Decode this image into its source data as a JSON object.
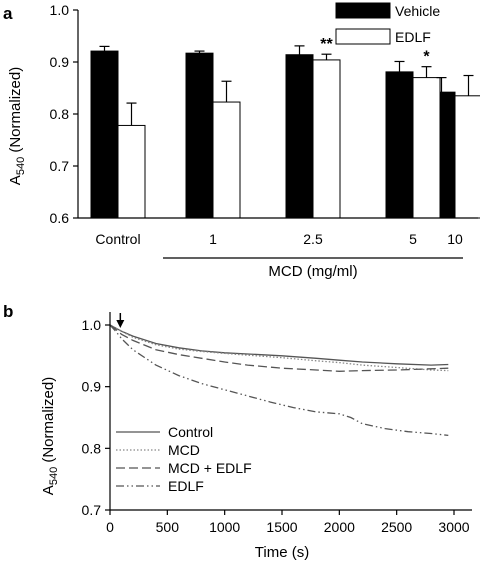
{
  "chart_data": [
    {
      "type": "bar",
      "panel_label": "a",
      "ylabel_main": "A",
      "ylabel_sub": "540",
      "ylabel_tail": " (Normalized)",
      "ylim": [
        0.6,
        1.0
      ],
      "yticks": [
        "0.6",
        "0.7",
        "0.8",
        "0.9",
        "1.0"
      ],
      "categories": [
        "Control",
        "1",
        "2.5",
        "5",
        "10"
      ],
      "group_label": "MCD (mg/ml)",
      "legend": {
        "placement": "top-right"
      },
      "series": [
        {
          "name": "Vehicle",
          "color": "#000000",
          "values": [
            0.921,
            0.917,
            0.914,
            0.881,
            0.842
          ],
          "errors": [
            0.009,
            0.004,
            0.017,
            0.02,
            0.028
          ]
        },
        {
          "name": "EDLF",
          "color": "#ffffff",
          "values": [
            0.778,
            0.823,
            0.904,
            0.87,
            0.835
          ],
          "errors": [
            0.043,
            0.04,
            0.011,
            0.021,
            0.039
          ]
        }
      ],
      "annotations": [
        {
          "category_index": 2,
          "series_index": 1,
          "text": "**"
        },
        {
          "category_index": 3,
          "series_index": 1,
          "text": "*"
        }
      ]
    },
    {
      "type": "line",
      "panel_label": "b",
      "xlabel": "Time (s)",
      "ylabel_main": "A",
      "ylabel_sub": "540",
      "ylabel_tail": " (Normalized)",
      "xlim": [
        0,
        3000
      ],
      "ylim": [
        0.7,
        1.0
      ],
      "xticks": [
        "0",
        "500",
        "1000",
        "1500",
        "2000",
        "2500",
        "3000"
      ],
      "yticks": [
        "0.7",
        "0.8",
        "0.9",
        "1.0"
      ],
      "arrow_at": 90,
      "legend": {
        "placement": "bottom-left"
      },
      "series": [
        {
          "name": "Control",
          "dash": "none",
          "color": "#555555",
          "x": [
            0,
            50,
            100,
            200,
            400,
            600,
            800,
            1000,
            1200,
            1500,
            1800,
            2000,
            2200,
            2500,
            2800,
            2950
          ],
          "y": [
            1.0,
            0.995,
            0.99,
            0.982,
            0.97,
            0.963,
            0.958,
            0.955,
            0.953,
            0.95,
            0.946,
            0.943,
            0.94,
            0.937,
            0.935,
            0.936
          ]
        },
        {
          "name": "MCD",
          "dash": "1.5,2",
          "color": "#888888",
          "x": [
            0,
            50,
            100,
            200,
            400,
            600,
            800,
            1000,
            1200,
            1500,
            1800,
            2000,
            2200,
            2500,
            2800,
            2950
          ],
          "y": [
            1.0,
            0.995,
            0.99,
            0.98,
            0.968,
            0.961,
            0.957,
            0.954,
            0.951,
            0.947,
            0.942,
            0.939,
            0.935,
            0.931,
            0.927,
            0.926
          ]
        },
        {
          "name": "MCD + EDLF",
          "dash": "9,4",
          "color": "#555555",
          "x": [
            0,
            50,
            100,
            200,
            400,
            600,
            800,
            1000,
            1200,
            1500,
            1800,
            2000,
            2200,
            2500,
            2800,
            2950
          ],
          "y": [
            1.0,
            0.993,
            0.985,
            0.975,
            0.96,
            0.952,
            0.946,
            0.94,
            0.935,
            0.93,
            0.927,
            0.925,
            0.926,
            0.927,
            0.929,
            0.93
          ]
        },
        {
          "name": "EDLF",
          "dash": "8,3,1.5,3,1.5,3",
          "color": "#555555",
          "x": [
            0,
            50,
            100,
            200,
            400,
            600,
            800,
            1000,
            1200,
            1400,
            1600,
            1800,
            2000,
            2100,
            2200,
            2400,
            2600,
            2800,
            2950
          ],
          "y": [
            1.0,
            0.99,
            0.978,
            0.96,
            0.935,
            0.918,
            0.905,
            0.895,
            0.885,
            0.875,
            0.866,
            0.859,
            0.856,
            0.85,
            0.84,
            0.832,
            0.827,
            0.824,
            0.821
          ]
        }
      ]
    }
  ]
}
